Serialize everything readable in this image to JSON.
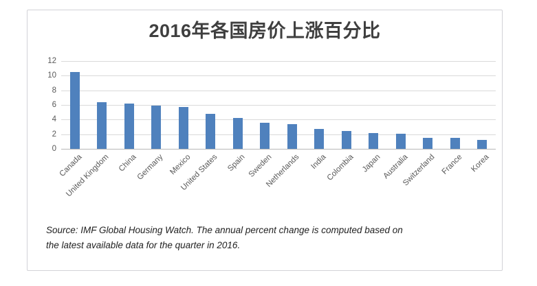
{
  "card": {
    "title": "2016年各国房价上涨百分比",
    "source_line1": "Source: IMF Global Housing Watch. The annual percent change is computed based on",
    "source_line2": "the latest available data for the quarter in 2016."
  },
  "colors": {
    "bar": "#4f81bd",
    "gridline": "#d9d9d9",
    "axis_line": "#b7b7b7",
    "axis_text": "#595959",
    "title_text": "#3f3f3f",
    "card_border": "#d2d2d7"
  },
  "chart_data": {
    "type": "bar",
    "title": "2016年各国房价上涨百分比",
    "categories": [
      "Canada",
      "United Kingdom",
      "China",
      "Germany",
      "Mexico",
      "United States",
      "Spain",
      "Sweden",
      "Netherlands",
      "India",
      "Colombia",
      "Japan",
      "Australia",
      "Switzerland",
      "France",
      "Korea"
    ],
    "values": [
      10.5,
      6.4,
      6.2,
      5.9,
      5.7,
      4.8,
      4.2,
      3.6,
      3.4,
      2.7,
      2.4,
      2.2,
      2.1,
      1.5,
      1.5,
      1.2
    ],
    "xlabel": "",
    "ylabel": "",
    "ylim": [
      0,
      12
    ],
    "yticks": [
      0,
      2,
      4,
      6,
      8,
      10,
      12
    ],
    "grid": true,
    "legend": false,
    "annotation": "Source: IMF Global Housing Watch. The annual percent change is computed based on the latest available data for the quarter in 2016."
  }
}
